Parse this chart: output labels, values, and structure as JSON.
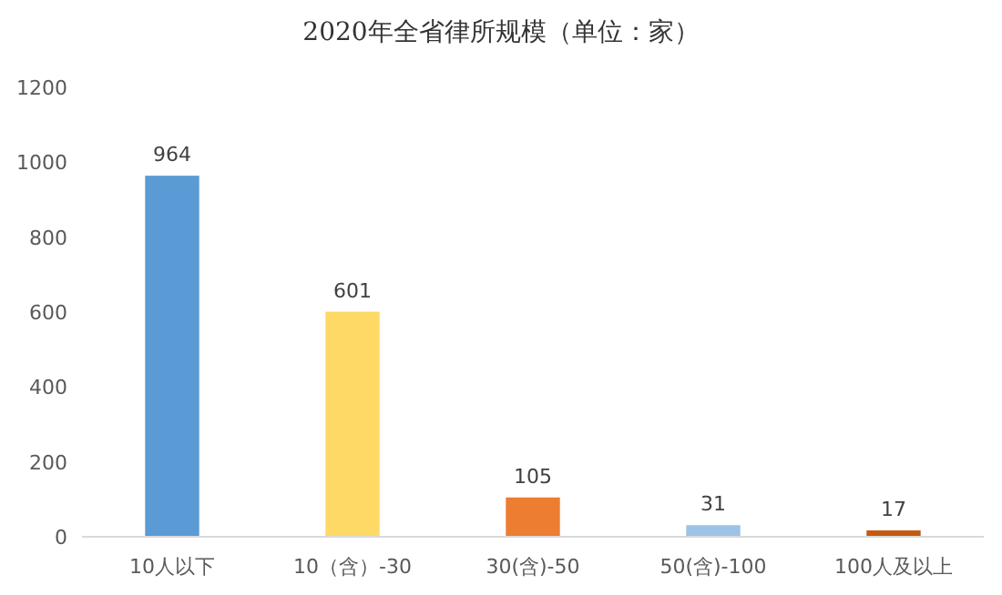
{
  "chart_data": {
    "type": "bar",
    "title": "2020年全省律所规模（单位：家）",
    "categories": [
      "10人以下",
      "10（含）-30",
      "30(含)-50",
      "50(含)-100",
      "100人及以上"
    ],
    "values": [
      964,
      601,
      105,
      31,
      17
    ],
    "colors": [
      "#5b9bd5",
      "#ffd966",
      "#ed7d31",
      "#9dc3e6",
      "#c55a11"
    ],
    "ylim": [
      0,
      1200
    ],
    "yticks": [
      0,
      200,
      400,
      600,
      800,
      1000,
      1200
    ],
    "data_labels": true,
    "grid": false
  }
}
